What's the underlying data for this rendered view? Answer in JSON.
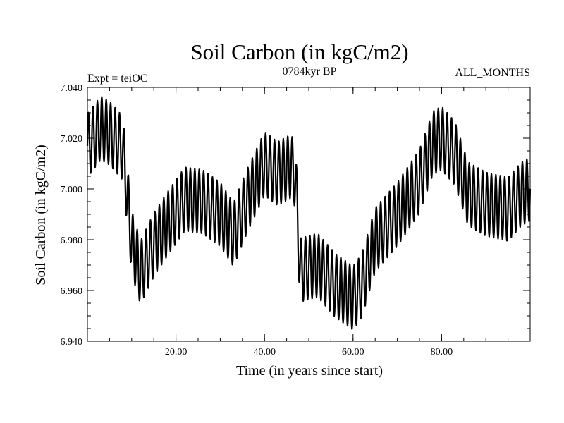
{
  "chart_data": {
    "type": "line",
    "title": "Soil Carbon (in kgC/m2)",
    "subtitle_left": "Expt = teiOC",
    "subtitle_center": "0784kyr BP",
    "subtitle_right": "ALL_MONTHS",
    "xlabel": "Time (in years since start)",
    "ylabel": "Soil Carbon (in kgC/m2)",
    "xlim": [
      0,
      100
    ],
    "ylim": [
      6.94,
      7.04
    ],
    "x_ticks": [
      20,
      40,
      60,
      80
    ],
    "x_tick_labels": [
      "20.00",
      "40.00",
      "60.00",
      "80.00"
    ],
    "y_ticks": [
      6.94,
      6.96,
      6.98,
      7.0,
      7.02,
      7.04
    ],
    "y_tick_labels": [
      "6.940",
      "6.960",
      "6.980",
      "7.000",
      "7.020",
      "7.040"
    ],
    "grid": false,
    "line_color": "#000000",
    "series": [
      {
        "name": "Soil Carbon",
        "seasonal_amplitude": 0.0125,
        "cycle_years": 1,
        "x": [
          0,
          3,
          5,
          8,
          10,
          12,
          15,
          18,
          22,
          26,
          30,
          33,
          36,
          40,
          43,
          46,
          47,
          48,
          52,
          56,
          60,
          62,
          65,
          70,
          75,
          78,
          80,
          83,
          86,
          90,
          95,
          98,
          100
        ],
        "mean": [
          7.017,
          7.024,
          7.022,
          7.016,
          6.979,
          6.967,
          6.978,
          6.986,
          6.996,
          6.995,
          6.99,
          6.982,
          6.995,
          7.01,
          7.006,
          7.009,
          7.005,
          6.968,
          6.97,
          6.962,
          6.957,
          6.962,
          6.98,
          6.99,
          7.003,
          7.018,
          7.02,
          7.014,
          6.998,
          6.994,
          6.992,
          6.998,
          7.0
        ]
      }
    ]
  }
}
